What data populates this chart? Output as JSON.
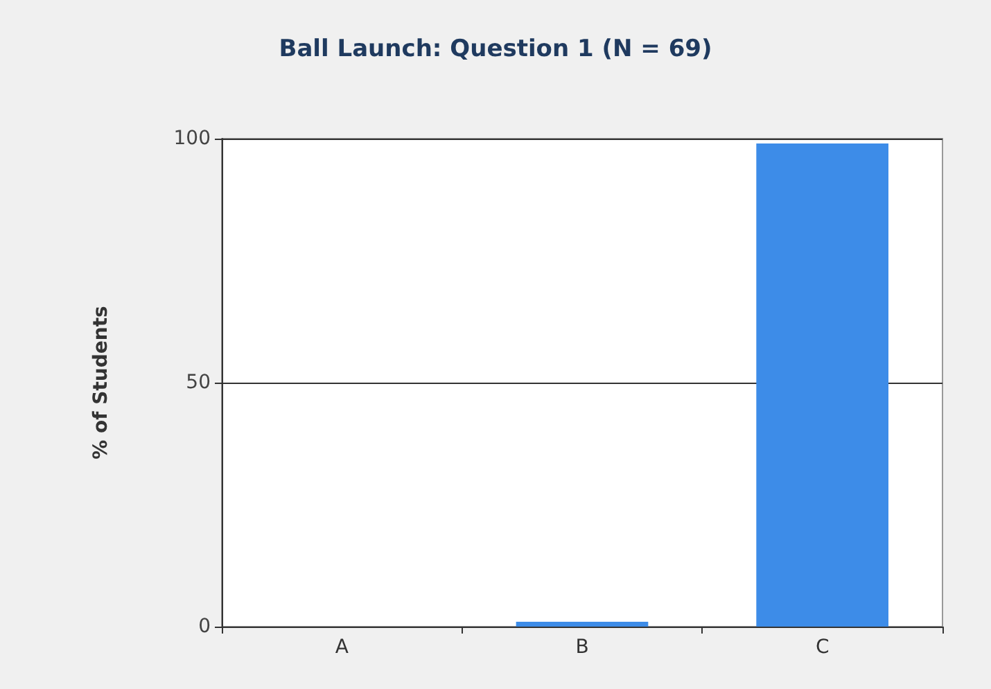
{
  "chart_data": {
    "type": "bar",
    "title": "Ball Launch: Question 1 (N = 69)",
    "ylabel": "% of Students",
    "categories": [
      "A",
      "B",
      "C"
    ],
    "values": [
      0,
      1,
      99
    ],
    "color": "#3d8ce8",
    "ylim": [
      0,
      100
    ],
    "yticks": [
      0,
      50,
      100
    ],
    "grid": "y"
  }
}
